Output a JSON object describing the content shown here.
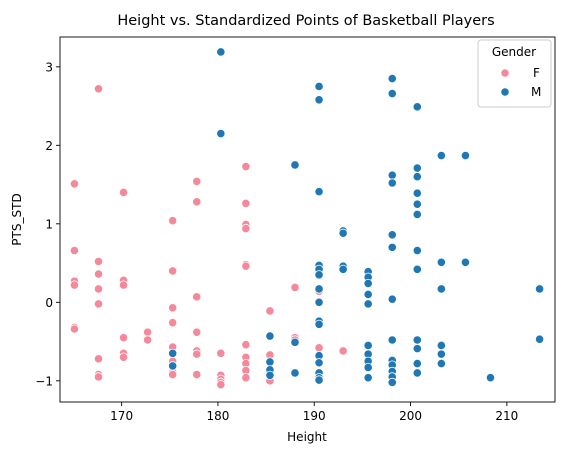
{
  "chart_data": {
    "type": "scatter",
    "title": "Height vs. Standardized Points of Basketball Players",
    "xlabel": "Height",
    "ylabel": "PTS_STD",
    "xlim": [
      163.6,
      215.0
    ],
    "ylim": [
      -1.27,
      3.38
    ],
    "xticks": [
      170,
      180,
      190,
      200,
      210
    ],
    "yticks": [
      -1,
      0,
      1,
      2,
      3
    ],
    "legend": {
      "title": "Gender",
      "position": "top-right"
    },
    "series": [
      {
        "name": "F",
        "color": "#f4899c",
        "points": [
          [
            165.1,
            1.51
          ],
          [
            165.1,
            0.66
          ],
          [
            165.1,
            0.27
          ],
          [
            165.1,
            0.22
          ],
          [
            165.1,
            -0.32
          ],
          [
            165.1,
            -0.34
          ],
          [
            167.6,
            2.72
          ],
          [
            167.6,
            0.52
          ],
          [
            167.6,
            0.36
          ],
          [
            167.6,
            0.17
          ],
          [
            167.6,
            -0.02
          ],
          [
            167.6,
            -0.72
          ],
          [
            167.6,
            -0.92
          ],
          [
            167.6,
            -0.95
          ],
          [
            170.2,
            1.4
          ],
          [
            170.2,
            0.28
          ],
          [
            170.2,
            0.22
          ],
          [
            170.2,
            -0.45
          ],
          [
            170.2,
            -0.65
          ],
          [
            170.2,
            -0.7
          ],
          [
            172.7,
            -0.38
          ],
          [
            172.7,
            -0.48
          ],
          [
            175.3,
            1.04
          ],
          [
            175.3,
            0.4
          ],
          [
            175.3,
            -0.07
          ],
          [
            175.3,
            -0.26
          ],
          [
            175.3,
            -0.57
          ],
          [
            175.3,
            -0.75
          ],
          [
            175.3,
            -0.89
          ],
          [
            175.3,
            -0.92
          ],
          [
            177.8,
            1.54
          ],
          [
            177.8,
            1.28
          ],
          [
            177.8,
            0.07
          ],
          [
            177.8,
            -0.38
          ],
          [
            177.8,
            -0.62
          ],
          [
            177.8,
            -0.66
          ],
          [
            177.8,
            -0.92
          ],
          [
            180.3,
            -0.65
          ],
          [
            180.3,
            -0.93
          ],
          [
            180.3,
            -0.98
          ],
          [
            180.3,
            -1.02
          ],
          [
            180.3,
            -1.05
          ],
          [
            182.9,
            1.73
          ],
          [
            182.9,
            1.26
          ],
          [
            182.9,
            0.99
          ],
          [
            182.9,
            0.94
          ],
          [
            182.9,
            0.48
          ],
          [
            182.9,
            0.46
          ],
          [
            182.9,
            -0.54
          ],
          [
            182.9,
            -0.7
          ],
          [
            182.9,
            -0.78
          ],
          [
            182.9,
            -0.87
          ],
          [
            182.9,
            -0.96
          ],
          [
            185.4,
            -0.11
          ],
          [
            185.4,
            -0.67
          ],
          [
            185.4,
            -0.85
          ],
          [
            185.4,
            -0.92
          ],
          [
            185.4,
            -1.0
          ],
          [
            188.0,
            0.19
          ],
          [
            188.0,
            -0.45
          ],
          [
            188.0,
            -0.48
          ],
          [
            190.5,
            0.14
          ],
          [
            190.5,
            -0.58
          ],
          [
            193.0,
            -0.62
          ]
        ]
      },
      {
        "name": "M",
        "color": "#1f77b4",
        "points": [
          [
            175.3,
            -0.65
          ],
          [
            175.3,
            -0.81
          ],
          [
            180.3,
            3.19
          ],
          [
            180.3,
            2.15
          ],
          [
            185.4,
            -0.43
          ],
          [
            185.4,
            -0.76
          ],
          [
            185.4,
            -0.86
          ],
          [
            185.4,
            -0.93
          ],
          [
            188.0,
            1.75
          ],
          [
            188.0,
            -0.51
          ],
          [
            188.0,
            -0.9
          ],
          [
            190.5,
            2.75
          ],
          [
            190.5,
            2.58
          ],
          [
            190.5,
            1.41
          ],
          [
            190.5,
            0.47
          ],
          [
            190.5,
            0.42
          ],
          [
            190.5,
            0.35
          ],
          [
            190.5,
            0.17
          ],
          [
            190.5,
            0.0
          ],
          [
            190.5,
            -0.24
          ],
          [
            190.5,
            -0.28
          ],
          [
            190.5,
            -0.68
          ],
          [
            190.5,
            -0.77
          ],
          [
            190.5,
            -0.9
          ],
          [
            190.5,
            -0.96
          ],
          [
            190.5,
            -0.99
          ],
          [
            193.0,
            0.91
          ],
          [
            193.0,
            0.88
          ],
          [
            193.0,
            0.46
          ],
          [
            193.0,
            0.42
          ],
          [
            195.6,
            0.39
          ],
          [
            195.6,
            0.32
          ],
          [
            195.6,
            0.24
          ],
          [
            195.6,
            0.1
          ],
          [
            195.6,
            -0.02
          ],
          [
            195.6,
            -0.55
          ],
          [
            195.6,
            -0.66
          ],
          [
            195.6,
            -0.75
          ],
          [
            195.6,
            -0.83
          ],
          [
            195.6,
            -0.96
          ],
          [
            198.1,
            2.85
          ],
          [
            198.1,
            2.66
          ],
          [
            198.1,
            1.62
          ],
          [
            198.1,
            1.52
          ],
          [
            198.1,
            0.86
          ],
          [
            198.1,
            0.7
          ],
          [
            198.1,
            0.04
          ],
          [
            198.1,
            -0.48
          ],
          [
            198.1,
            -0.74
          ],
          [
            198.1,
            -0.8
          ],
          [
            198.1,
            -0.88
          ],
          [
            198.1,
            -0.95
          ],
          [
            198.1,
            -1.02
          ],
          [
            200.7,
            2.49
          ],
          [
            200.7,
            1.71
          ],
          [
            200.7,
            1.6
          ],
          [
            200.7,
            1.39
          ],
          [
            200.7,
            1.25
          ],
          [
            200.7,
            1.12
          ],
          [
            200.7,
            0.66
          ],
          [
            200.7,
            0.42
          ],
          [
            200.7,
            -0.48
          ],
          [
            200.7,
            -0.59
          ],
          [
            200.7,
            -0.78
          ],
          [
            200.7,
            -0.9
          ],
          [
            203.2,
            1.87
          ],
          [
            203.2,
            0.51
          ],
          [
            203.2,
            0.17
          ],
          [
            203.2,
            -0.55
          ],
          [
            203.2,
            -0.66
          ],
          [
            203.2,
            -0.78
          ],
          [
            205.7,
            1.87
          ],
          [
            205.7,
            0.51
          ],
          [
            208.3,
            -0.96
          ],
          [
            213.4,
            0.17
          ],
          [
            213.4,
            -0.47
          ]
        ]
      }
    ]
  }
}
